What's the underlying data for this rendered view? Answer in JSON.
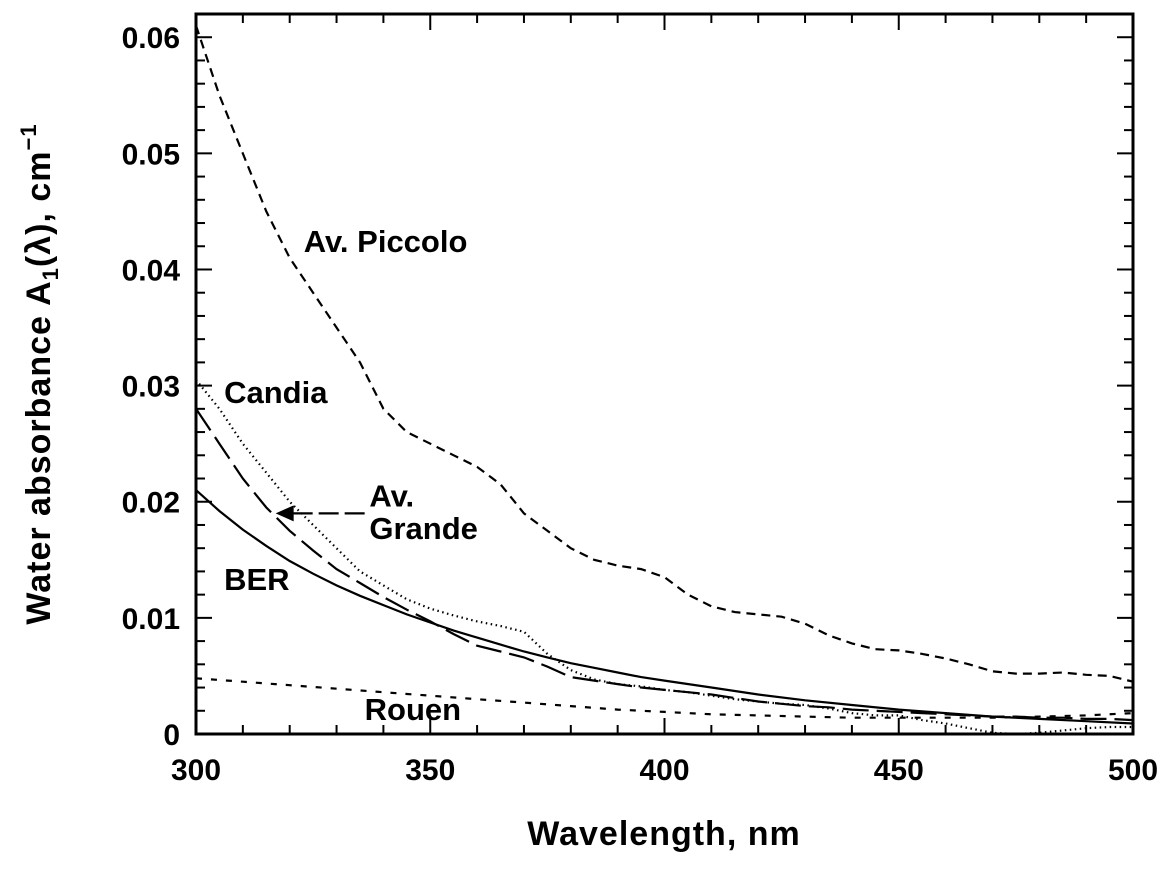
{
  "chart_data": {
    "type": "line",
    "xlabel": "Wavelength, nm",
    "ylabel": {
      "prefix": "Water absorbance A",
      "subscript": "1",
      "middle": "(λ), cm",
      "superscript": "−1"
    },
    "xlim": [
      300,
      500
    ],
    "ylim": [
      0,
      0.062
    ],
    "x_ticks": [
      "300",
      "350",
      "400",
      "450",
      "500"
    ],
    "y_ticks": [
      "0",
      "0.01",
      "0.02",
      "0.03",
      "0.04",
      "0.05",
      "0.06"
    ],
    "grid": false,
    "series": [
      {
        "name": "Av. Piccolo",
        "style": "dashed",
        "points": [
          [
            300,
            0.061
          ],
          [
            305,
            0.055
          ],
          [
            310,
            0.05
          ],
          [
            315,
            0.045
          ],
          [
            320,
            0.041
          ],
          [
            325,
            0.038
          ],
          [
            330,
            0.035
          ],
          [
            335,
            0.032
          ],
          [
            340,
            0.028
          ],
          [
            345,
            0.026
          ],
          [
            350,
            0.025
          ],
          [
            355,
            0.024
          ],
          [
            360,
            0.023
          ],
          [
            365,
            0.0215
          ],
          [
            370,
            0.019
          ],
          [
            375,
            0.0175
          ],
          [
            380,
            0.016
          ],
          [
            385,
            0.015
          ],
          [
            390,
            0.0145
          ],
          [
            395,
            0.0142
          ],
          [
            400,
            0.0135
          ],
          [
            405,
            0.012
          ],
          [
            410,
            0.011
          ],
          [
            415,
            0.0105
          ],
          [
            420,
            0.0103
          ],
          [
            425,
            0.0101
          ],
          [
            430,
            0.0095
          ],
          [
            435,
            0.0085
          ],
          [
            440,
            0.0078
          ],
          [
            445,
            0.0073
          ],
          [
            450,
            0.0072
          ],
          [
            455,
            0.0069
          ],
          [
            460,
            0.0065
          ],
          [
            465,
            0.006
          ],
          [
            470,
            0.0054
          ],
          [
            475,
            0.0052
          ],
          [
            480,
            0.0052
          ],
          [
            485,
            0.0053
          ],
          [
            490,
            0.0051
          ],
          [
            495,
            0.005
          ],
          [
            500,
            0.0045
          ]
        ]
      },
      {
        "name": "Candia",
        "style": "dotted",
        "points": [
          [
            300,
            0.0305
          ],
          [
            305,
            0.028
          ],
          [
            310,
            0.025
          ],
          [
            315,
            0.0225
          ],
          [
            320,
            0.02
          ],
          [
            325,
            0.018
          ],
          [
            330,
            0.016
          ],
          [
            335,
            0.014
          ],
          [
            340,
            0.0128
          ],
          [
            345,
            0.0116
          ],
          [
            350,
            0.0108
          ],
          [
            355,
            0.0102
          ],
          [
            360,
            0.0097
          ],
          [
            365,
            0.0093
          ],
          [
            370,
            0.0088
          ],
          [
            375,
            0.0069
          ],
          [
            380,
            0.0055
          ],
          [
            385,
            0.0047
          ],
          [
            390,
            0.0043
          ],
          [
            395,
            0.0041
          ],
          [
            400,
            0.0038
          ],
          [
            405,
            0.0036
          ],
          [
            410,
            0.0033
          ],
          [
            415,
            0.003
          ],
          [
            420,
            0.0028
          ],
          [
            425,
            0.0026
          ],
          [
            430,
            0.0025
          ],
          [
            435,
            0.0022
          ],
          [
            440,
            0.0018
          ],
          [
            445,
            0.0016
          ],
          [
            450,
            0.0016
          ],
          [
            455,
            0.0012
          ],
          [
            460,
            0.0009
          ],
          [
            465,
            0.0005
          ],
          [
            470,
            0.0001
          ],
          [
            475,
            0.0
          ],
          [
            480,
            0.0001
          ],
          [
            485,
            0.0003
          ],
          [
            490,
            0.0005
          ],
          [
            495,
            0.0006
          ],
          [
            500,
            0.0006
          ]
        ]
      },
      {
        "name": "Av. Grande",
        "style": "long-dash",
        "points": [
          [
            300,
            0.028
          ],
          [
            305,
            0.025
          ],
          [
            310,
            0.022
          ],
          [
            315,
            0.0195
          ],
          [
            320,
            0.0175
          ],
          [
            325,
            0.0158
          ],
          [
            330,
            0.0142
          ],
          [
            335,
            0.013
          ],
          [
            340,
            0.0118
          ],
          [
            345,
            0.0107
          ],
          [
            350,
            0.0097
          ],
          [
            355,
            0.0086
          ],
          [
            360,
            0.0076
          ],
          [
            365,
            0.0071
          ],
          [
            370,
            0.0066
          ],
          [
            375,
            0.0058
          ],
          [
            380,
            0.0049
          ],
          [
            385,
            0.0046
          ],
          [
            390,
            0.0043
          ],
          [
            395,
            0.004
          ],
          [
            400,
            0.0038
          ],
          [
            405,
            0.0036
          ],
          [
            410,
            0.0034
          ],
          [
            415,
            0.0031
          ],
          [
            420,
            0.0028
          ],
          [
            425,
            0.0026
          ],
          [
            430,
            0.0024
          ],
          [
            435,
            0.0023
          ],
          [
            440,
            0.0021
          ],
          [
            445,
            0.002
          ],
          [
            450,
            0.0019
          ],
          [
            455,
            0.0018
          ],
          [
            460,
            0.0017
          ],
          [
            465,
            0.0016
          ],
          [
            470,
            0.0015
          ],
          [
            475,
            0.0015
          ],
          [
            480,
            0.0014
          ],
          [
            485,
            0.0014
          ],
          [
            490,
            0.0013
          ],
          [
            495,
            0.0013
          ],
          [
            500,
            0.0012
          ]
        ]
      },
      {
        "name": "BER",
        "style": "solid",
        "points": [
          [
            300,
            0.021
          ],
          [
            305,
            0.0192
          ],
          [
            310,
            0.0176
          ],
          [
            315,
            0.0162
          ],
          [
            320,
            0.0149
          ],
          [
            325,
            0.0138
          ],
          [
            330,
            0.0128
          ],
          [
            335,
            0.0119
          ],
          [
            340,
            0.0111
          ],
          [
            345,
            0.0103
          ],
          [
            350,
            0.0096
          ],
          [
            355,
            0.0089
          ],
          [
            360,
            0.0083
          ],
          [
            365,
            0.0077
          ],
          [
            370,
            0.0071
          ],
          [
            375,
            0.0066
          ],
          [
            380,
            0.0061
          ],
          [
            385,
            0.0057
          ],
          [
            390,
            0.0053
          ],
          [
            395,
            0.0049
          ],
          [
            400,
            0.0046
          ],
          [
            410,
            0.004
          ],
          [
            420,
            0.0034
          ],
          [
            430,
            0.0029
          ],
          [
            440,
            0.0025
          ],
          [
            450,
            0.0021
          ],
          [
            460,
            0.0018
          ],
          [
            470,
            0.0015
          ],
          [
            480,
            0.0013
          ],
          [
            490,
            0.0011
          ],
          [
            500,
            0.0009
          ]
        ]
      },
      {
        "name": "Rouen",
        "style": "short-dash",
        "points": [
          [
            300,
            0.0048
          ],
          [
            310,
            0.0045
          ],
          [
            320,
            0.0042
          ],
          [
            330,
            0.0039
          ],
          [
            340,
            0.0036
          ],
          [
            350,
            0.0033
          ],
          [
            360,
            0.003
          ],
          [
            370,
            0.0027
          ],
          [
            380,
            0.0024
          ],
          [
            390,
            0.0021
          ],
          [
            400,
            0.0019
          ],
          [
            410,
            0.0017
          ],
          [
            420,
            0.0016
          ],
          [
            430,
            0.0015
          ],
          [
            440,
            0.0014
          ],
          [
            450,
            0.0014
          ],
          [
            460,
            0.0014
          ],
          [
            470,
            0.0014
          ],
          [
            480,
            0.0015
          ],
          [
            490,
            0.0016
          ],
          [
            500,
            0.0018
          ]
        ]
      }
    ],
    "annotations": [
      {
        "text": "Av. Piccolo",
        "x": 323,
        "y": 0.0415
      },
      {
        "text": "Candia",
        "x": 306,
        "y": 0.0285
      },
      {
        "text": "Av.",
        "x": 337,
        "y": 0.0196
      },
      {
        "text": "Grande",
        "x": 337,
        "y": 0.0168
      },
      {
        "text": "BER",
        "x": 306,
        "y": 0.0124
      },
      {
        "text": "Rouen",
        "x": 336,
        "y": 0.0012
      }
    ],
    "arrow": {
      "from": [
        336,
        0.019
      ],
      "to": [
        317,
        0.019
      ]
    }
  }
}
